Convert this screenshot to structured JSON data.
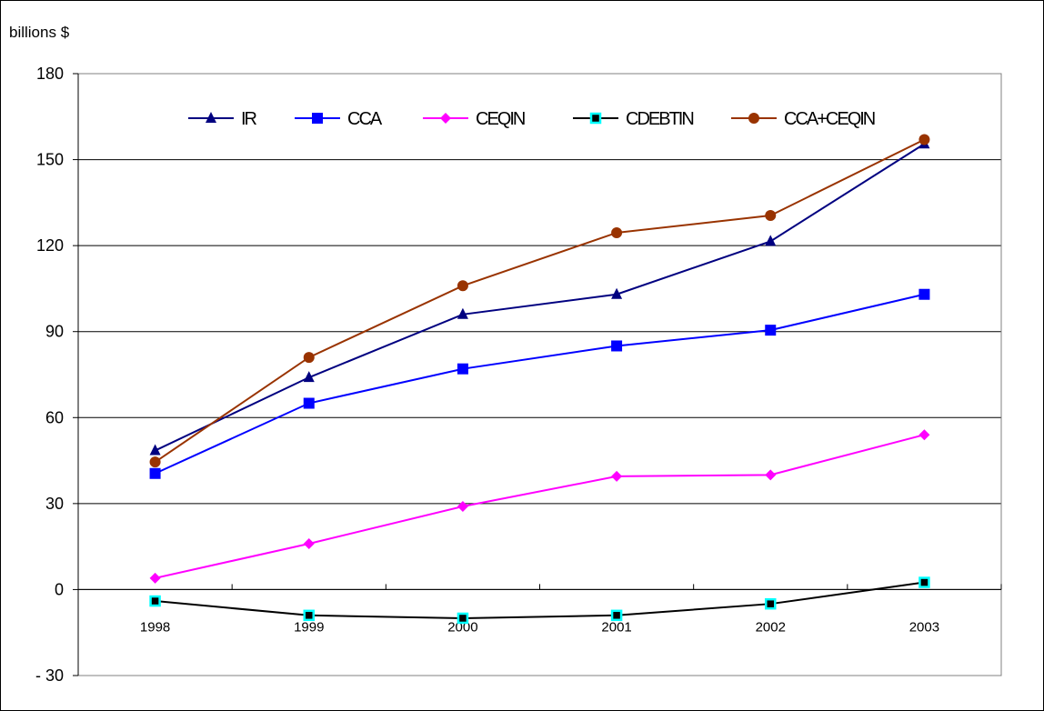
{
  "chart_data": {
    "type": "line",
    "unit_label": "billions $",
    "categories": [
      "1998",
      "1999",
      "2000",
      "2001",
      "2002",
      "2003"
    ],
    "yticks": [
      180,
      150,
      120,
      90,
      60,
      30,
      0,
      -30
    ],
    "ytick_labels": [
      "180",
      "150",
      "120",
      "90",
      "60",
      "30",
      "0",
      "- 30"
    ],
    "ylim": [
      -30,
      180
    ],
    "grid": true,
    "legend_position": "top",
    "series": [
      {
        "name": "IR",
        "color": "#000080",
        "marker": "triangle",
        "values": [
          48.5,
          74,
          96,
          103,
          121.5,
          155.5
        ]
      },
      {
        "name": "CCA",
        "color": "#0000ff",
        "marker": "square",
        "values": [
          40.5,
          65,
          77,
          85,
          90.5,
          103
        ]
      },
      {
        "name": "CEQIN",
        "color": "#ff00ff",
        "marker": "diamond",
        "values": [
          4,
          16,
          29,
          39.5,
          40,
          54
        ]
      },
      {
        "name": "CDEBTIN",
        "color": "#000000",
        "marker": "square-cyan",
        "values": [
          -4,
          -9,
          -10,
          -9,
          -5,
          2.5
        ]
      },
      {
        "name": "CCA+CEQIN",
        "color": "#993300",
        "marker": "circle",
        "values": [
          44.5,
          81,
          106,
          124.5,
          130.5,
          157
        ]
      }
    ]
  }
}
